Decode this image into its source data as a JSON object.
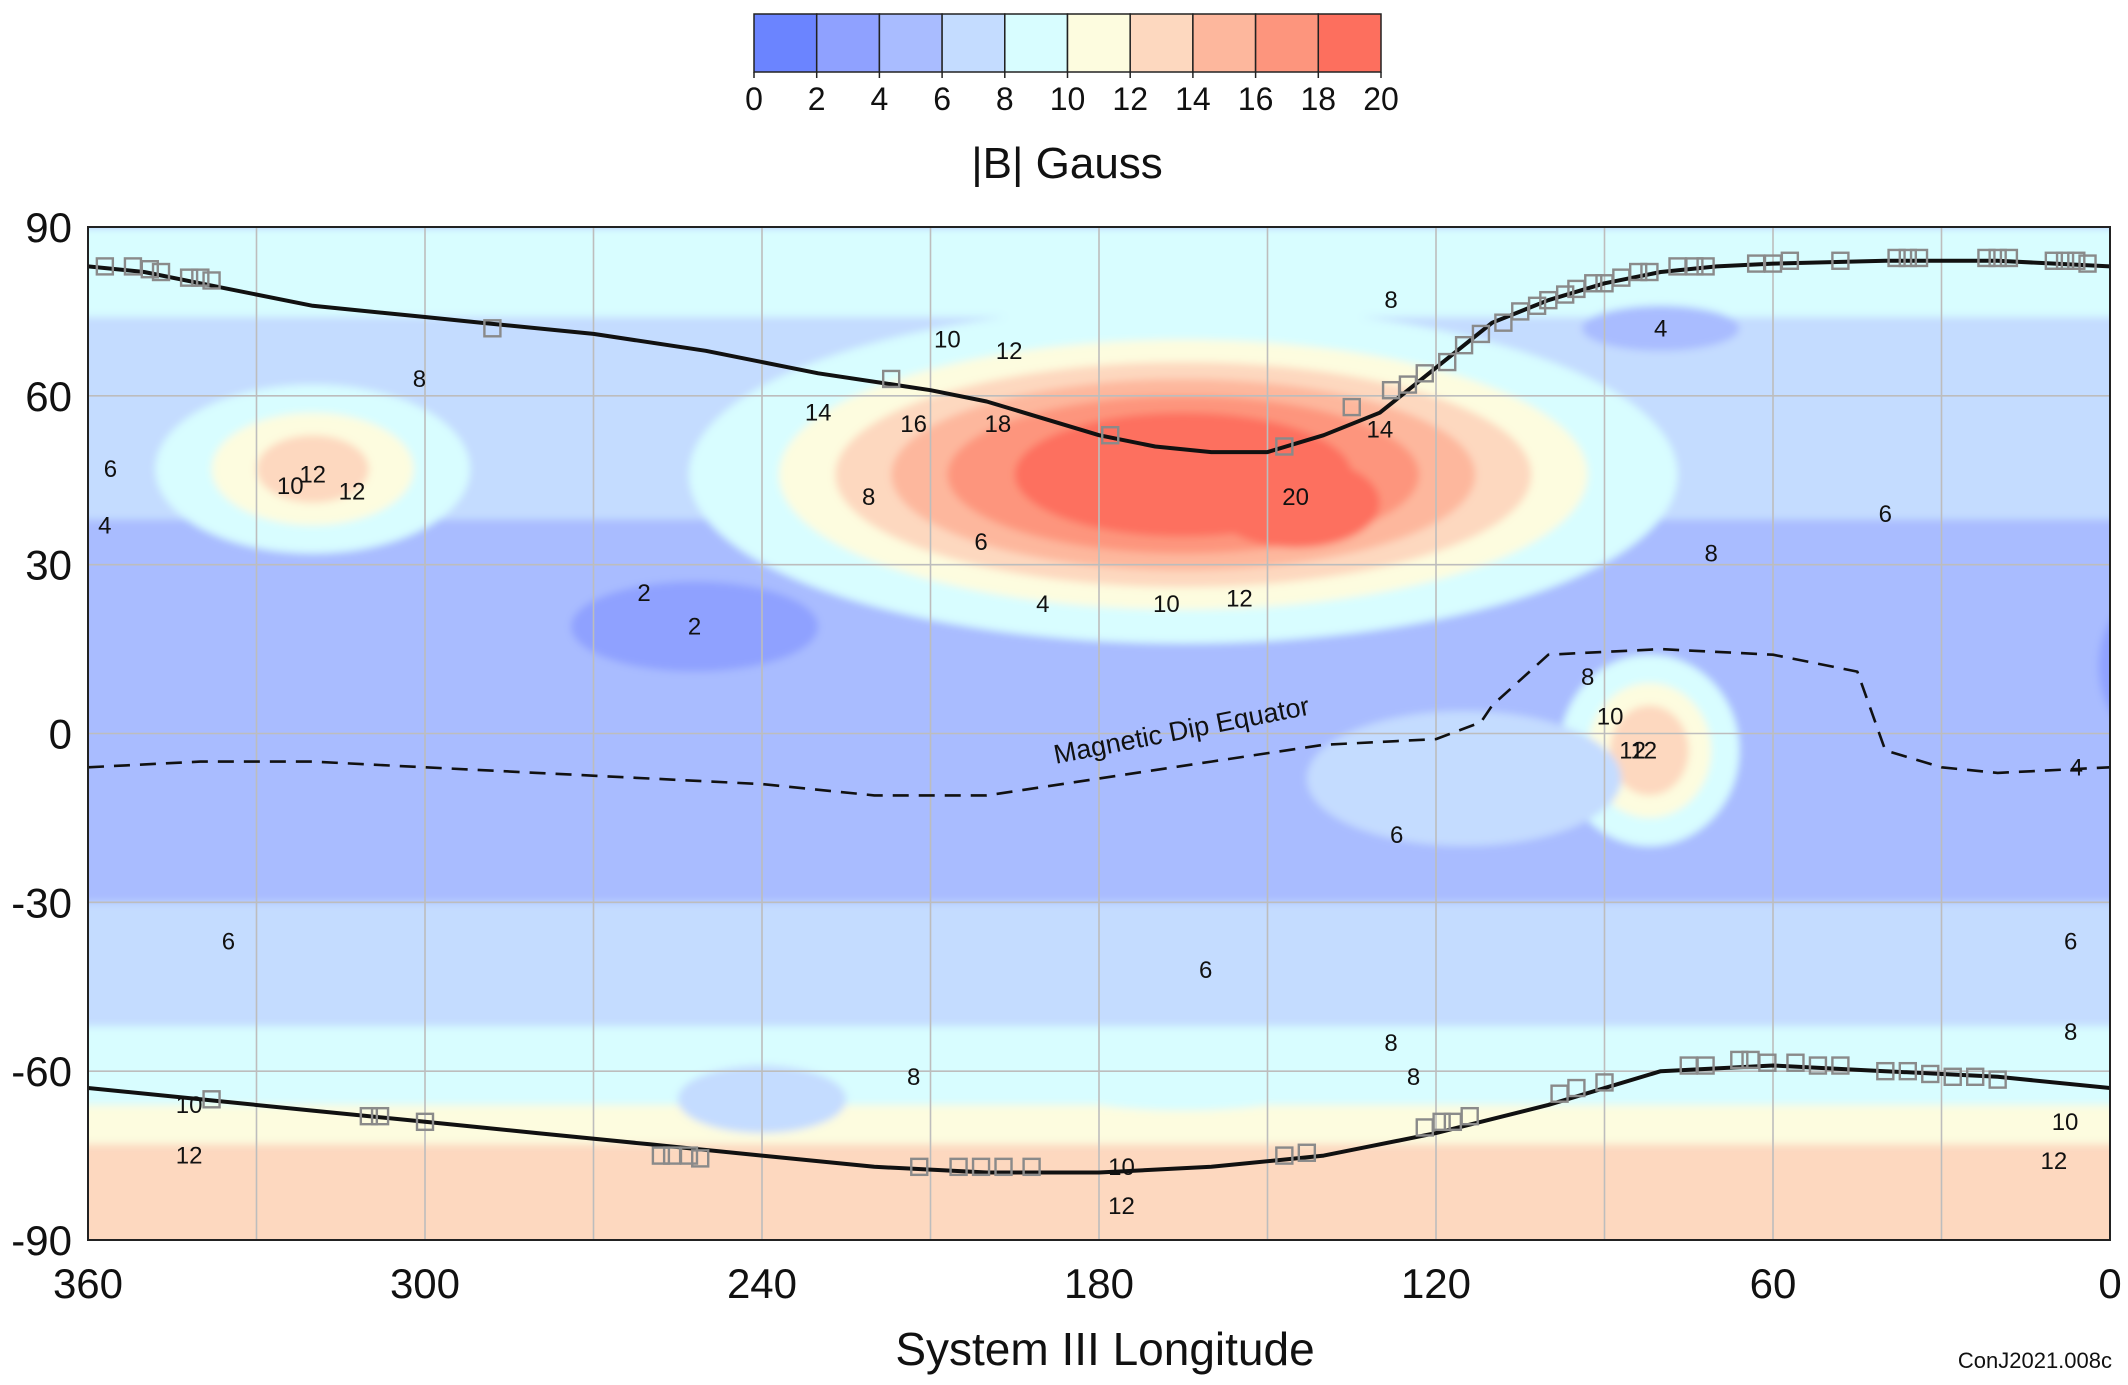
{
  "chart_data": {
    "type": "heatmap",
    "title": "",
    "xlabel": "System III Longitude",
    "ylabel": "",
    "xlim": [
      360,
      0
    ],
    "ylim": [
      -90,
      90
    ],
    "x_ticks": [
      "360",
      "300",
      "240",
      "180",
      "120",
      "60",
      "0"
    ],
    "y_ticks": [
      "90",
      "60",
      "30",
      "0",
      "-30",
      "-60",
      "-90"
    ],
    "x_tick_values": [
      360,
      300,
      240,
      180,
      120,
      60,
      0
    ],
    "y_tick_values": [
      90,
      60,
      30,
      0,
      -30,
      -60,
      -90
    ],
    "grid": true,
    "grid_step_deg": 30,
    "colorbar": {
      "label": "|B| Gauss",
      "ticks": [
        "0",
        "2",
        "4",
        "6",
        "8",
        "10",
        "12",
        "14",
        "16",
        "18",
        "20"
      ],
      "levels": [
        0,
        2,
        4,
        6,
        8,
        10,
        12,
        14,
        16,
        18,
        20
      ],
      "colors": [
        "#6b84ff",
        "#8fa1ff",
        "#a9bcff",
        "#c4dcff",
        "#d8fdff",
        "#fdfcdf",
        "#fdd8bf",
        "#fdb79d",
        "#fd957d",
        "#fd6f5e"
      ]
    },
    "field_background": {
      "polar_north_band": 8,
      "north_mid_band": 6,
      "tropical_band": 4,
      "southern_mid_band": 6,
      "south_band": 8,
      "south_polar": 12
    },
    "features": [
      {
        "label": "20",
        "kind": "north maximum",
        "peak_gauss": 20,
        "lon": 145,
        "lat": 42
      },
      {
        "label": "2",
        "kind": "minimum",
        "lon": 252,
        "lat": 19
      },
      {
        "label": "12",
        "kind": "local maximum",
        "lon": 320,
        "lat": 46
      },
      {
        "label": "12",
        "kind": "local maximum",
        "lon": 83,
        "lat": -3
      },
      {
        "label": "4",
        "kind": "local minimum",
        "lon": 80,
        "lat": 72
      }
    ],
    "annotations": [
      {
        "text": "Magnetic Dip Equator",
        "lon": 165,
        "lat": -1
      }
    ],
    "contour_labels": [
      {
        "text": "8",
        "lon": 128,
        "lat": 77
      },
      {
        "text": "8",
        "lon": 301,
        "lat": 63
      },
      {
        "text": "10",
        "lon": 207,
        "lat": 70
      },
      {
        "text": "12",
        "lon": 196,
        "lat": 68
      },
      {
        "text": "14",
        "lon": 230,
        "lat": 57
      },
      {
        "text": "16",
        "lon": 213,
        "lat": 55
      },
      {
        "text": "18",
        "lon": 198,
        "lat": 55
      },
      {
        "text": "14",
        "lon": 130,
        "lat": 54
      },
      {
        "text": "6",
        "lon": 356,
        "lat": 47
      },
      {
        "text": "4",
        "lon": 357,
        "lat": 37
      },
      {
        "text": "10",
        "lon": 324,
        "lat": 44
      },
      {
        "text": "12",
        "lon": 313,
        "lat": 43
      },
      {
        "text": "8",
        "lon": 221,
        "lat": 42
      },
      {
        "text": "6",
        "lon": 201,
        "lat": 34
      },
      {
        "text": "4",
        "lon": 190,
        "lat": 23
      },
      {
        "text": "2",
        "lon": 261,
        "lat": 25
      },
      {
        "text": "10",
        "lon": 168,
        "lat": 23
      },
      {
        "text": "12",
        "lon": 155,
        "lat": 24
      },
      {
        "text": "8",
        "lon": 71,
        "lat": 32
      },
      {
        "text": "6",
        "lon": 40,
        "lat": 39
      },
      {
        "text": "8",
        "lon": 93,
        "lat": 10
      },
      {
        "text": "10",
        "lon": 89,
        "lat": 3
      },
      {
        "text": "12",
        "lon": 85,
        "lat": -3
      },
      {
        "text": "4",
        "lon": 6,
        "lat": -6
      },
      {
        "text": "6",
        "lon": 127,
        "lat": -18
      },
      {
        "text": "6",
        "lon": 335,
        "lat": -37
      },
      {
        "text": "6",
        "lon": 161,
        "lat": -42
      },
      {
        "text": "6",
        "lon": 7,
        "lat": -37
      },
      {
        "text": "8",
        "lon": 128,
        "lat": -55
      },
      {
        "text": "8",
        "lon": 213,
        "lat": -61
      },
      {
        "text": "8",
        "lon": 124,
        "lat": -61
      },
      {
        "text": "8",
        "lon": 7,
        "lat": -53
      },
      {
        "text": "10",
        "lon": 342,
        "lat": -66
      },
      {
        "text": "10",
        "lon": 8,
        "lat": -69
      },
      {
        "text": "12",
        "lon": 342,
        "lat": -75
      },
      {
        "text": "12",
        "lon": 176,
        "lat": -84
      },
      {
        "text": "10",
        "lon": 176,
        "lat": -77
      },
      {
        "text": "12",
        "lon": 10,
        "lat": -76
      }
    ],
    "series": [
      {
        "name": "",
        "style": "solid",
        "x": [
          360,
          350,
          340,
          320,
          300,
          290,
          270,
          250,
          230,
          210,
          200,
          190,
          180,
          170,
          160,
          150,
          140,
          130,
          120,
          110,
          100,
          90,
          80,
          70,
          60,
          40,
          20,
          0
        ],
        "y": [
          83,
          82,
          80,
          76,
          74,
          73,
          71,
          68,
          64,
          61,
          59,
          56,
          53,
          51,
          50,
          50,
          53,
          57,
          65,
          73,
          77,
          80,
          82,
          83,
          83.5,
          84,
          84,
          83
        ]
      },
      {
        "name": "",
        "style": "solid",
        "x": [
          360,
          340,
          320,
          300,
          280,
          260,
          240,
          220,
          200,
          180,
          160,
          140,
          120,
          100,
          80,
          60,
          40,
          20,
          0
        ],
        "y": [
          -63,
          -65,
          -67,
          -69,
          -71,
          -73,
          -75,
          -77,
          -78,
          -78,
          -77,
          -75,
          -71,
          -66,
          -60,
          -59,
          -60,
          -61,
          -63
        ]
      },
      {
        "name": "Magnetic Dip Equator",
        "style": "dashed",
        "x": [
          360,
          340,
          320,
          300,
          280,
          260,
          240,
          220,
          200,
          180,
          160,
          140,
          120,
          112,
          110,
          100,
          80,
          60,
          45,
          40,
          30,
          20,
          0
        ],
        "y": [
          -6,
          -5,
          -5,
          -6,
          -7,
          -8,
          -9,
          -11,
          -11,
          -8,
          -5,
          -2,
          -1,
          2,
          5,
          14,
          15,
          14,
          11,
          -3,
          -6,
          -7,
          -6
        ]
      }
    ],
    "trajectory_markers": {
      "north": [
        {
          "lon": 357,
          "lat": 83
        },
        {
          "lon": 352,
          "lat": 83
        },
        {
          "lon": 349,
          "lat": 82.5
        },
        {
          "lon": 347,
          "lat": 82
        },
        {
          "lon": 342,
          "lat": 81
        },
        {
          "lon": 340,
          "lat": 81
        },
        {
          "lon": 338,
          "lat": 80.5
        },
        {
          "lon": 288,
          "lat": 72
        },
        {
          "lon": 217,
          "lat": 63
        },
        {
          "lon": 178,
          "lat": 53
        },
        {
          "lon": 147,
          "lat": 51
        },
        {
          "lon": 135,
          "lat": 58
        },
        {
          "lon": 128,
          "lat": 61
        },
        {
          "lon": 125,
          "lat": 62
        },
        {
          "lon": 122,
          "lat": 64
        },
        {
          "lon": 118,
          "lat": 66
        },
        {
          "lon": 115,
          "lat": 69
        },
        {
          "lon": 112,
          "lat": 71
        },
        {
          "lon": 108,
          "lat": 73
        },
        {
          "lon": 105,
          "lat": 75
        },
        {
          "lon": 102,
          "lat": 76
        },
        {
          "lon": 100,
          "lat": 77
        },
        {
          "lon": 97,
          "lat": 78
        },
        {
          "lon": 95,
          "lat": 79
        },
        {
          "lon": 92,
          "lat": 80
        },
        {
          "lon": 90,
          "lat": 80
        },
        {
          "lon": 87,
          "lat": 81
        },
        {
          "lon": 84,
          "lat": 82
        },
        {
          "lon": 82,
          "lat": 82
        },
        {
          "lon": 77,
          "lat": 83
        },
        {
          "lon": 74,
          "lat": 83
        },
        {
          "lon": 72,
          "lat": 83
        },
        {
          "lon": 63,
          "lat": 83.5
        },
        {
          "lon": 60,
          "lat": 83.5
        },
        {
          "lon": 57,
          "lat": 84
        },
        {
          "lon": 48,
          "lat": 84
        },
        {
          "lon": 38,
          "lat": 84.5
        },
        {
          "lon": 36,
          "lat": 84.5
        },
        {
          "lon": 34,
          "lat": 84.5
        },
        {
          "lon": 22,
          "lat": 84.5
        },
        {
          "lon": 20,
          "lat": 84.5
        },
        {
          "lon": 18,
          "lat": 84.5
        },
        {
          "lon": 10,
          "lat": 84
        },
        {
          "lon": 8,
          "lat": 84
        },
        {
          "lon": 6,
          "lat": 84
        },
        {
          "lon": 4,
          "lat": 83.5
        }
      ],
      "south": [
        {
          "lon": 338,
          "lat": -65
        },
        {
          "lon": 310,
          "lat": -68
        },
        {
          "lon": 308,
          "lat": -68
        },
        {
          "lon": 300,
          "lat": -69
        },
        {
          "lon": 258,
          "lat": -75
        },
        {
          "lon": 256,
          "lat": -75
        },
        {
          "lon": 253,
          "lat": -75
        },
        {
          "lon": 251,
          "lat": -75.5
        },
        {
          "lon": 212,
          "lat": -77
        },
        {
          "lon": 205,
          "lat": -77
        },
        {
          "lon": 201,
          "lat": -77
        },
        {
          "lon": 197,
          "lat": -77
        },
        {
          "lon": 192,
          "lat": -77
        },
        {
          "lon": 147,
          "lat": -75
        },
        {
          "lon": 143,
          "lat": -74.5
        },
        {
          "lon": 122,
          "lat": -70
        },
        {
          "lon": 119,
          "lat": -69
        },
        {
          "lon": 117,
          "lat": -69
        },
        {
          "lon": 114,
          "lat": -68
        },
        {
          "lon": 98,
          "lat": -64
        },
        {
          "lon": 95,
          "lat": -63
        },
        {
          "lon": 90,
          "lat": -62
        },
        {
          "lon": 75,
          "lat": -59
        },
        {
          "lon": 72,
          "lat": -59
        },
        {
          "lon": 66,
          "lat": -58
        },
        {
          "lon": 64,
          "lat": -58
        },
        {
          "lon": 61,
          "lat": -58.5
        },
        {
          "lon": 56,
          "lat": -58.5
        },
        {
          "lon": 52,
          "lat": -59
        },
        {
          "lon": 48,
          "lat": -59
        },
        {
          "lon": 40,
          "lat": -60
        },
        {
          "lon": 36,
          "lat": -60
        },
        {
          "lon": 32,
          "lat": -60.5
        },
        {
          "lon": 28,
          "lat": -61
        },
        {
          "lon": 24,
          "lat": -61
        },
        {
          "lon": 20,
          "lat": -61.5
        }
      ]
    },
    "credit": "ConJ2021.008c"
  }
}
